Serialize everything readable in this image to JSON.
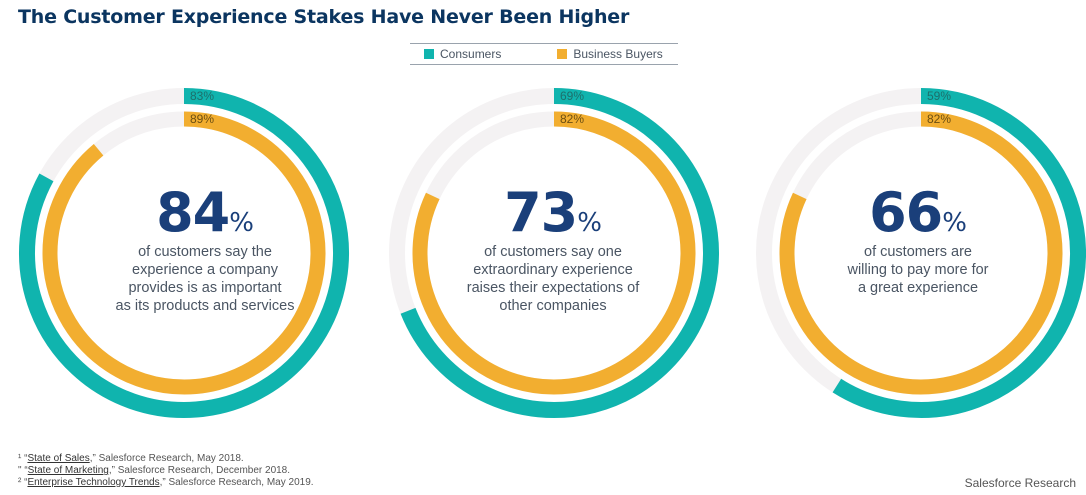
{
  "title": "The Customer Experience Stakes Have Never Been Higher",
  "legend": {
    "consumers": "Consumers",
    "business": "Business Buyers"
  },
  "colors": {
    "consumers": "#10b4ae",
    "business": "#f2ae30",
    "track": "#f4f2f3",
    "number": "#1a3f7a"
  },
  "chart_data": {
    "type": "donut",
    "series": [
      {
        "name": "Consumers",
        "values": [
          83,
          69,
          59
        ]
      },
      {
        "name": "Business Buyers",
        "values": [
          89,
          82,
          82
        ]
      }
    ],
    "labels": {
      "consumers": [
        "83%",
        "69%",
        "59%"
      ],
      "business": [
        "89%",
        "82%",
        "82%"
      ]
    },
    "stats": [
      {
        "value": "84",
        "unit": "%",
        "text": "of customers say the\nexperience a company\nprovides is as important\nas its products and services"
      },
      {
        "value": "73",
        "unit": "%",
        "text": "of customers say one\nextraordinary experience\nraises their expectations of\nother companies"
      },
      {
        "value": "66",
        "unit": "%",
        "text": "of customers are\nwilling to pay more for\na great experience"
      }
    ]
  },
  "footnotes": [
    {
      "marker": "¹",
      "title": "State of Sales",
      "rest": " Salesforce Research, May 2018."
    },
    {
      "marker": "\"",
      "title": "State of Marketing",
      "rest": " Salesforce Research, December 2018."
    },
    {
      "marker": "²",
      "title": "Enterprise Technology Trends",
      "rest": " Salesforce Research, May 2019."
    }
  ],
  "brand": "Salesforce Research"
}
